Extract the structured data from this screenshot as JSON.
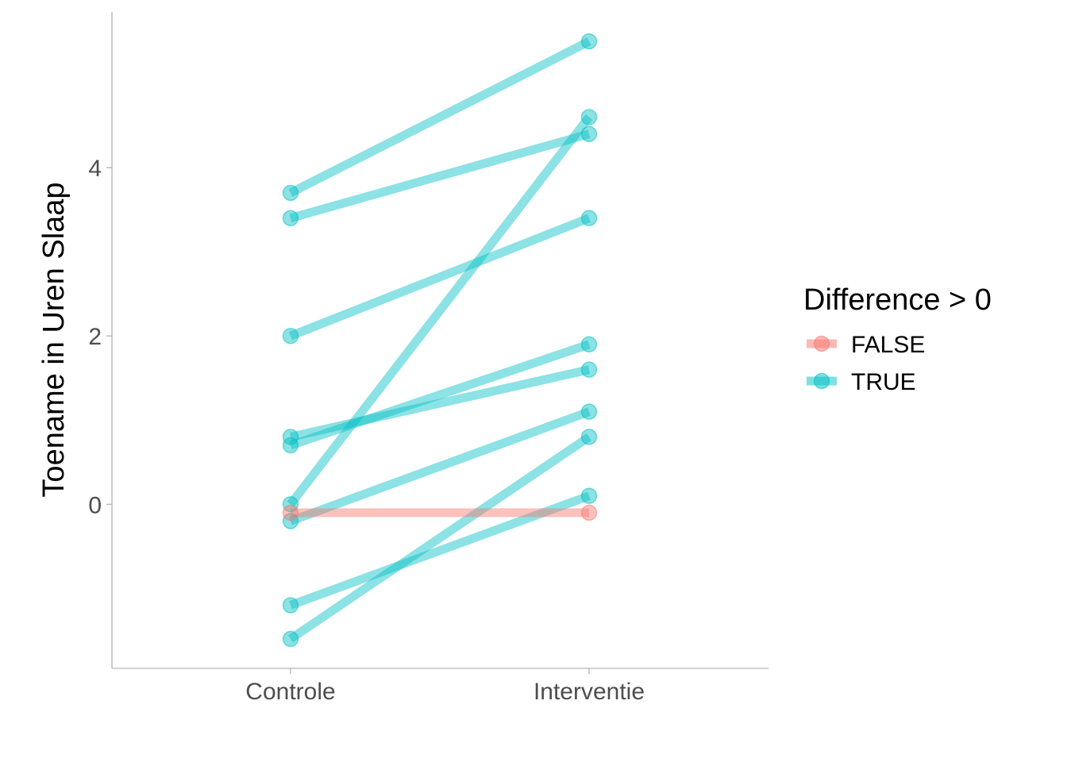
{
  "chart_data": {
    "type": "line",
    "categories": [
      "Controle",
      "Interventie"
    ],
    "ylabel": "Toename in Uren Slaap",
    "xlabel": "",
    "ylim": [
      -1.95,
      5.85
    ],
    "yticks": [
      0,
      2,
      4
    ],
    "grid": false,
    "legend": {
      "title": "Difference > 0",
      "placement": "right",
      "entries": [
        {
          "label": "FALSE",
          "color": "#F8766D"
        },
        {
          "label": "TRUE",
          "color": "#00BFC4"
        }
      ]
    },
    "pairs": [
      {
        "values": [
          3.7,
          5.5
        ],
        "difference_gt_0": "TRUE"
      },
      {
        "values": [
          3.4,
          4.4
        ],
        "difference_gt_0": "TRUE"
      },
      {
        "values": [
          2.0,
          3.4
        ],
        "difference_gt_0": "TRUE"
      },
      {
        "values": [
          0.0,
          4.6
        ],
        "difference_gt_0": "TRUE"
      },
      {
        "values": [
          0.8,
          1.6
        ],
        "difference_gt_0": "TRUE"
      },
      {
        "values": [
          0.7,
          1.9
        ],
        "difference_gt_0": "TRUE"
      },
      {
        "values": [
          -0.2,
          1.1
        ],
        "difference_gt_0": "TRUE"
      },
      {
        "values": [
          -1.2,
          0.1
        ],
        "difference_gt_0": "TRUE"
      },
      {
        "values": [
          -1.6,
          0.8
        ],
        "difference_gt_0": "TRUE"
      },
      {
        "values": [
          -0.1,
          -0.1
        ],
        "difference_gt_0": "FALSE"
      }
    ]
  }
}
